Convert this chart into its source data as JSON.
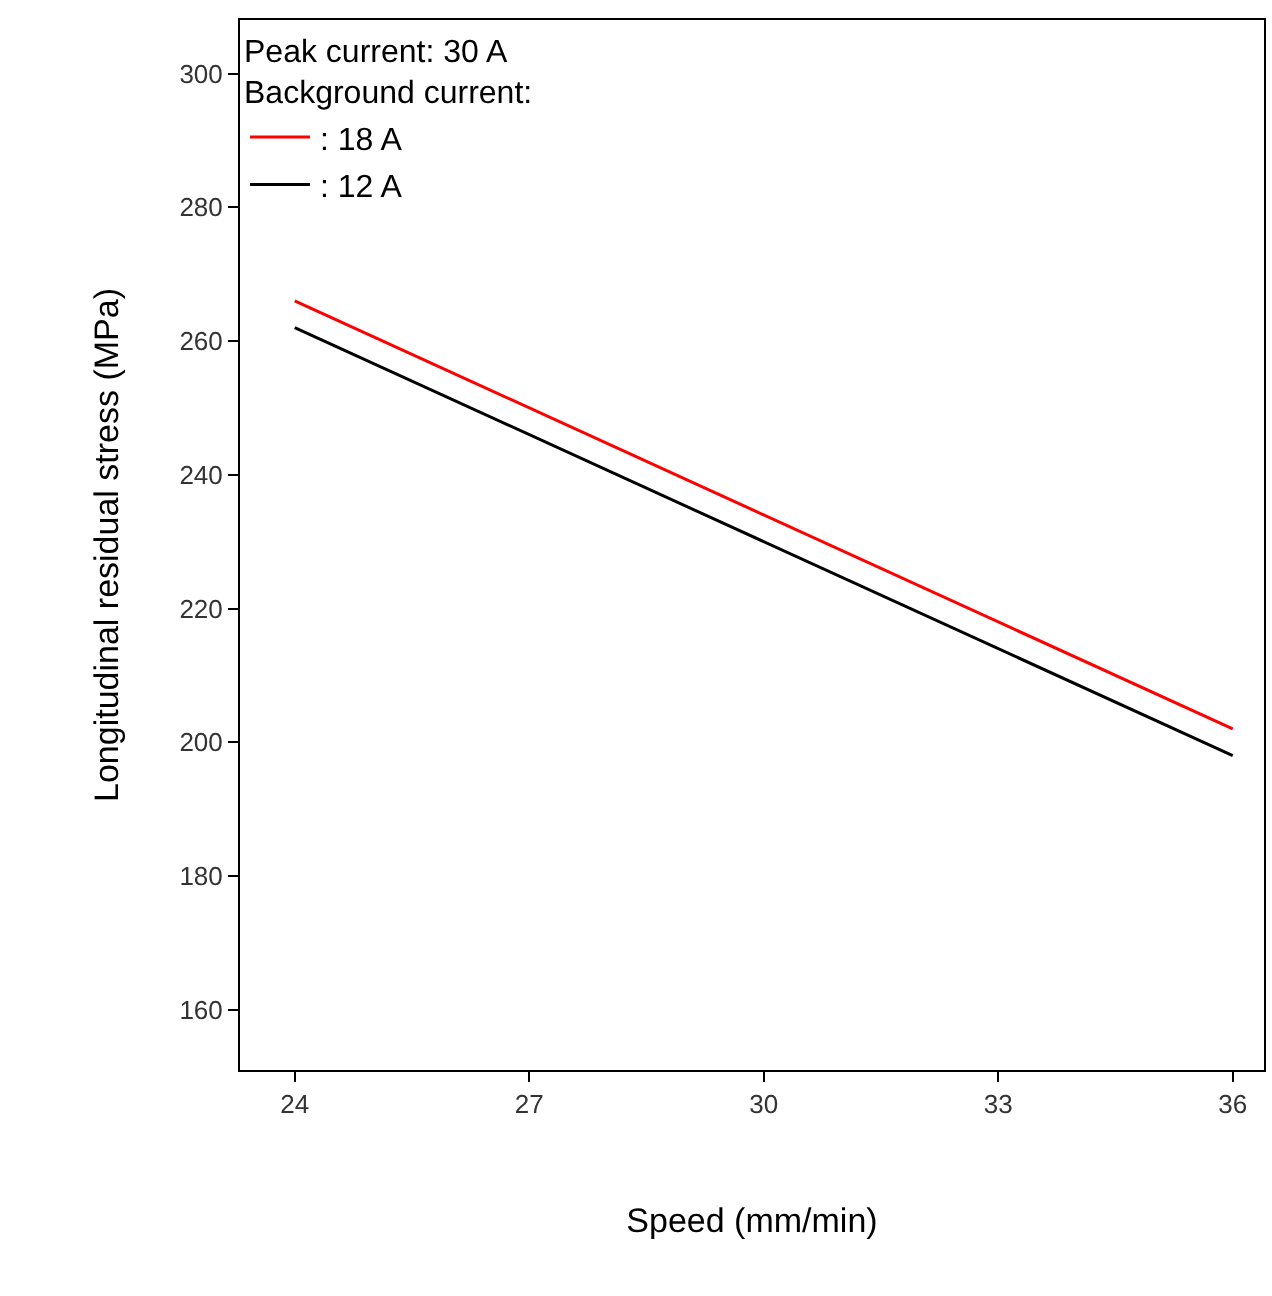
{
  "chart_data": {
    "type": "line",
    "xlabel": "Speed (mm/min)",
    "ylabel": "Longitudinal residual stress (MPa)",
    "legend_title": "Peak current: 30 A\nBackground current:",
    "x": [
      24,
      36
    ],
    "series": [
      {
        "name": ": 18 A",
        "color": "#ff0000",
        "values": [
          266,
          202
        ]
      },
      {
        "name": ": 12 A",
        "color": "#000000",
        "values": [
          262,
          198
        ]
      }
    ],
    "xlim": [
      23.3,
      36.4
    ],
    "xticks": [
      24,
      27,
      30,
      33,
      36
    ],
    "ylim": [
      151,
      308
    ],
    "yticks": [
      160,
      180,
      200,
      220,
      240,
      260,
      280,
      300
    ],
    "legend": "top left",
    "marker": "none",
    "line_style": "solid"
  }
}
